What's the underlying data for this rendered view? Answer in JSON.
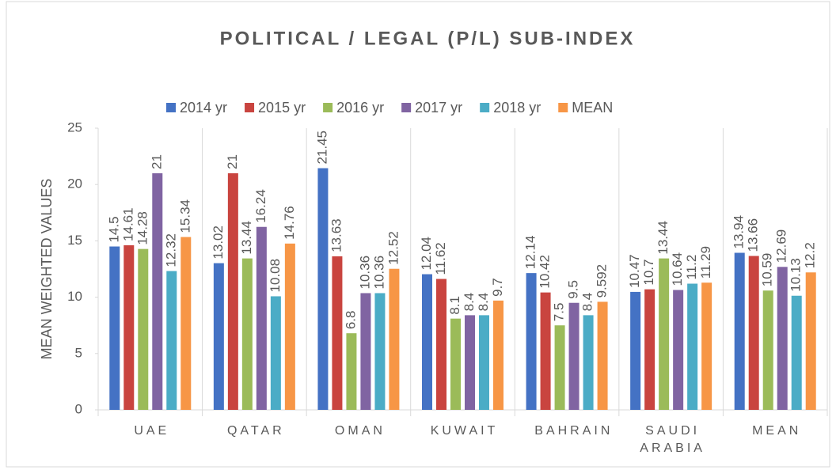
{
  "chart_data": {
    "type": "bar",
    "title": "POLITICAL / LEGAL (P/L) SUB-INDEX",
    "y_label": "MEAN WEIGHTED VALUES",
    "categories": [
      "UAE",
      "QATAR",
      "OMAN",
      "KUWAIT",
      "BAHRAIN",
      "SAUDI ARABIA",
      "MEAN"
    ],
    "series": [
      {
        "name": "2014 yr",
        "color": "#4472c4",
        "values": [
          14.5,
          13.02,
          21.45,
          12.04,
          12.14,
          10.47,
          13.94
        ]
      },
      {
        "name": "2015 yr",
        "color": "#c9443f",
        "values": [
          14.61,
          21,
          13.63,
          11.62,
          10.42,
          10.7,
          13.66
        ]
      },
      {
        "name": "2016 yr",
        "color": "#9bbb59",
        "values": [
          14.28,
          13.44,
          6.8,
          8.1,
          7.5,
          13.44,
          10.59
        ]
      },
      {
        "name": "2017 yr",
        "color": "#8064a2",
        "values": [
          21,
          16.24,
          10.36,
          8.4,
          9.5,
          10.64,
          12.69
        ]
      },
      {
        "name": "2018 yr",
        "color": "#4bacc6",
        "values": [
          12.32,
          10.08,
          10.36,
          8.4,
          8.4,
          11.2,
          10.13
        ]
      },
      {
        "name": "MEAN",
        "color": "#f79646",
        "values": [
          15.34,
          14.76,
          12.52,
          9.7,
          9.592,
          11.29,
          12.2
        ]
      }
    ],
    "ylim": [
      0,
      25
    ],
    "yticks": [
      0,
      5,
      10,
      15,
      20,
      25
    ],
    "legend": "top"
  }
}
